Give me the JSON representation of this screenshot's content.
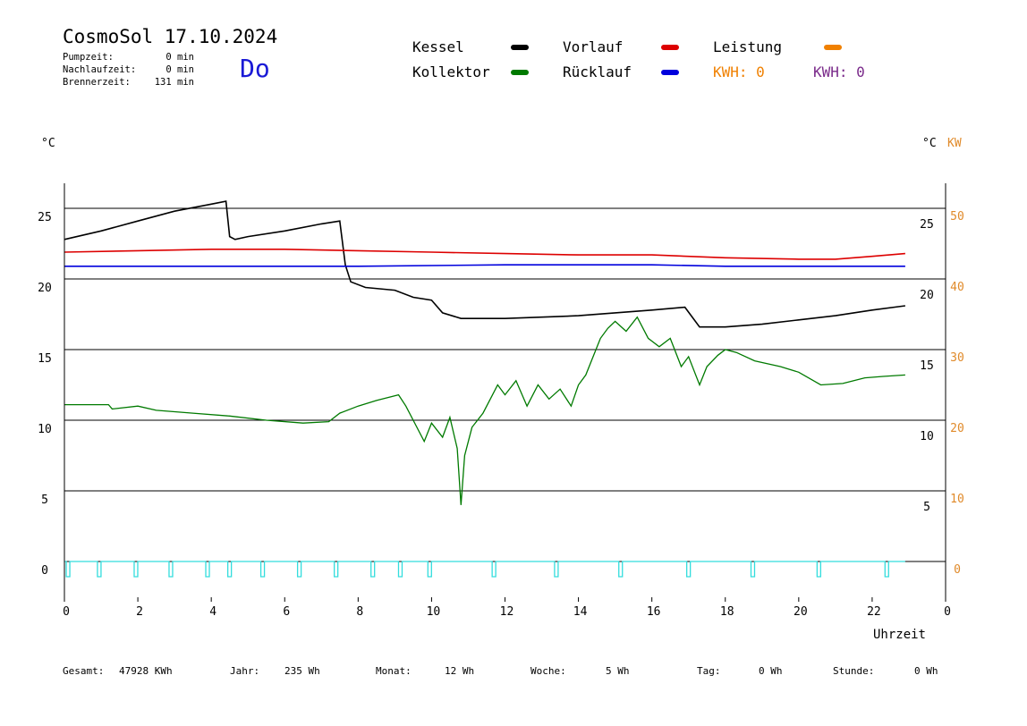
{
  "header": {
    "title": "CosmoSol 17.10.2024",
    "day": "Do",
    "info": [
      {
        "label": "Pumpzeit:",
        "value": "0 min"
      },
      {
        "label": "Nachlaufzeit:",
        "value": "0 min"
      },
      {
        "label": "Brennerzeit:",
        "value": "131 min"
      }
    ]
  },
  "legend": {
    "kessel": "Kessel",
    "kollektor": "Kollektor",
    "vorlauf": "Vorlauf",
    "ruecklauf": "Rücklauf",
    "leistung": "Leistung",
    "kwh_orange": "KWH: 0",
    "kwh_purple": "KWH: 0"
  },
  "units": {
    "left": "°C",
    "right_c": "°C",
    "right_kw": "KW"
  },
  "colors": {
    "kessel": "#000000",
    "kollektor": "#007a00",
    "vorlauf": "#dd0000",
    "ruecklauf": "#0000dd",
    "leistung": "#f08000",
    "purple": "#7a2a8a",
    "pump": "#33dddd"
  },
  "footer": [
    {
      "label": "Gesamt:",
      "value": "47928 KWh"
    },
    {
      "label": "Jahr:",
      "value": "235 Wh"
    },
    {
      "label": "Monat:",
      "value": "12 Wh"
    },
    {
      "label": "Woche:",
      "value": "5 Wh"
    },
    {
      "label": "Tag:",
      "value": "0 Wh"
    },
    {
      "label": "Stunde:",
      "value": "0 Wh"
    }
  ],
  "chart_data": {
    "type": "line",
    "xlabel": "Uhrzeit",
    "xlim": [
      0,
      24
    ],
    "ylim": [
      -2,
      27
    ],
    "x_ticks": [
      "0",
      "2",
      "4",
      "6",
      "8",
      "10",
      "12",
      "14",
      "16",
      "18",
      "20",
      "22",
      "0"
    ],
    "y_left_ticks": [
      "0",
      "5",
      "10",
      "15",
      "20",
      "25"
    ],
    "y_right_c_ticks": [
      "5",
      "10",
      "15",
      "20",
      "25"
    ],
    "y_right_kw_ticks": [
      "0",
      "10",
      "20",
      "30",
      "40",
      "50"
    ],
    "gridlines_y": [
      0,
      5,
      10,
      15,
      20,
      25
    ],
    "series": [
      {
        "name": "Kessel",
        "key": "kessel",
        "points": [
          [
            0,
            22.8
          ],
          [
            1,
            23.4
          ],
          [
            2,
            24.1
          ],
          [
            3,
            24.8
          ],
          [
            4,
            25.3
          ],
          [
            4.4,
            25.5
          ],
          [
            4.5,
            23.0
          ],
          [
            4.65,
            22.8
          ],
          [
            5,
            23.0
          ],
          [
            6,
            23.4
          ],
          [
            7,
            23.9
          ],
          [
            7.5,
            24.1
          ],
          [
            7.65,
            21.0
          ],
          [
            7.8,
            19.8
          ],
          [
            8.2,
            19.4
          ],
          [
            9.0,
            19.2
          ],
          [
            9.5,
            18.7
          ],
          [
            10.0,
            18.5
          ],
          [
            10.3,
            17.6
          ],
          [
            10.8,
            17.2
          ],
          [
            12,
            17.2
          ],
          [
            13,
            17.3
          ],
          [
            14,
            17.4
          ],
          [
            15,
            17.6
          ],
          [
            16,
            17.8
          ],
          [
            16.9,
            18.0
          ],
          [
            17.3,
            16.6
          ],
          [
            18,
            16.6
          ],
          [
            19,
            16.8
          ],
          [
            20,
            17.1
          ],
          [
            21,
            17.4
          ],
          [
            22,
            17.8
          ],
          [
            22.9,
            18.1
          ]
        ]
      },
      {
        "name": "Vorlauf",
        "key": "vorlauf",
        "points": [
          [
            0,
            21.9
          ],
          [
            2,
            22.0
          ],
          [
            4,
            22.1
          ],
          [
            6,
            22.1
          ],
          [
            8,
            22.0
          ],
          [
            10,
            21.9
          ],
          [
            12,
            21.8
          ],
          [
            14,
            21.7
          ],
          [
            16,
            21.7
          ],
          [
            18,
            21.5
          ],
          [
            20,
            21.4
          ],
          [
            21,
            21.4
          ],
          [
            22,
            21.6
          ],
          [
            22.9,
            21.8
          ]
        ]
      },
      {
        "name": "Rücklauf",
        "key": "ruecklauf",
        "points": [
          [
            0,
            20.9
          ],
          [
            4,
            20.9
          ],
          [
            8,
            20.9
          ],
          [
            12,
            21.0
          ],
          [
            16,
            21.0
          ],
          [
            18,
            20.9
          ],
          [
            20,
            20.9
          ],
          [
            22.9,
            20.9
          ]
        ]
      },
      {
        "name": "Kollektor",
        "key": "kollektor",
        "points": [
          [
            0,
            11.1
          ],
          [
            1.2,
            11.1
          ],
          [
            1.3,
            10.8
          ],
          [
            2,
            11.0
          ],
          [
            2.5,
            10.7
          ],
          [
            3.5,
            10.5
          ],
          [
            4.5,
            10.3
          ],
          [
            5.5,
            10.0
          ],
          [
            6.5,
            9.8
          ],
          [
            7.2,
            9.9
          ],
          [
            7.5,
            10.5
          ],
          [
            8,
            11.0
          ],
          [
            8.5,
            11.4
          ],
          [
            9.1,
            11.8
          ],
          [
            9.3,
            11.0
          ],
          [
            9.5,
            10.0
          ],
          [
            9.8,
            8.5
          ],
          [
            10.0,
            9.8
          ],
          [
            10.3,
            8.8
          ],
          [
            10.5,
            10.2
          ],
          [
            10.7,
            8.0
          ],
          [
            10.8,
            4.0
          ],
          [
            10.9,
            7.5
          ],
          [
            11.1,
            9.5
          ],
          [
            11.4,
            10.5
          ],
          [
            11.6,
            11.5
          ],
          [
            11.8,
            12.5
          ],
          [
            12.0,
            11.8
          ],
          [
            12.3,
            12.8
          ],
          [
            12.6,
            11.0
          ],
          [
            12.9,
            12.5
          ],
          [
            13.2,
            11.5
          ],
          [
            13.5,
            12.2
          ],
          [
            13.8,
            11.0
          ],
          [
            14.0,
            12.5
          ],
          [
            14.2,
            13.2
          ],
          [
            14.4,
            14.5
          ],
          [
            14.6,
            15.8
          ],
          [
            14.8,
            16.5
          ],
          [
            15.0,
            17.0
          ],
          [
            15.3,
            16.3
          ],
          [
            15.6,
            17.3
          ],
          [
            15.9,
            15.8
          ],
          [
            16.2,
            15.2
          ],
          [
            16.5,
            15.8
          ],
          [
            16.8,
            13.8
          ],
          [
            17.0,
            14.5
          ],
          [
            17.3,
            12.5
          ],
          [
            17.5,
            13.8
          ],
          [
            17.8,
            14.6
          ],
          [
            18.0,
            15.0
          ],
          [
            18.3,
            14.8
          ],
          [
            18.8,
            14.2
          ],
          [
            19.5,
            13.8
          ],
          [
            20,
            13.4
          ],
          [
            20.6,
            12.5
          ],
          [
            21.2,
            12.6
          ],
          [
            21.8,
            13.0
          ],
          [
            22.3,
            13.1
          ],
          [
            22.9,
            13.2
          ]
        ]
      }
    ],
    "pump_on_hours": [
      0.05,
      0.9,
      1.9,
      2.85,
      3.85,
      4.45,
      5.35,
      6.35,
      7.35,
      8.35,
      9.1,
      9.9,
      11.65,
      13.35,
      15.1,
      16.95,
      18.7,
      20.5,
      22.35
    ],
    "leistung": [
      [
        0,
        0
      ],
      [
        22.9,
        0
      ]
    ]
  }
}
